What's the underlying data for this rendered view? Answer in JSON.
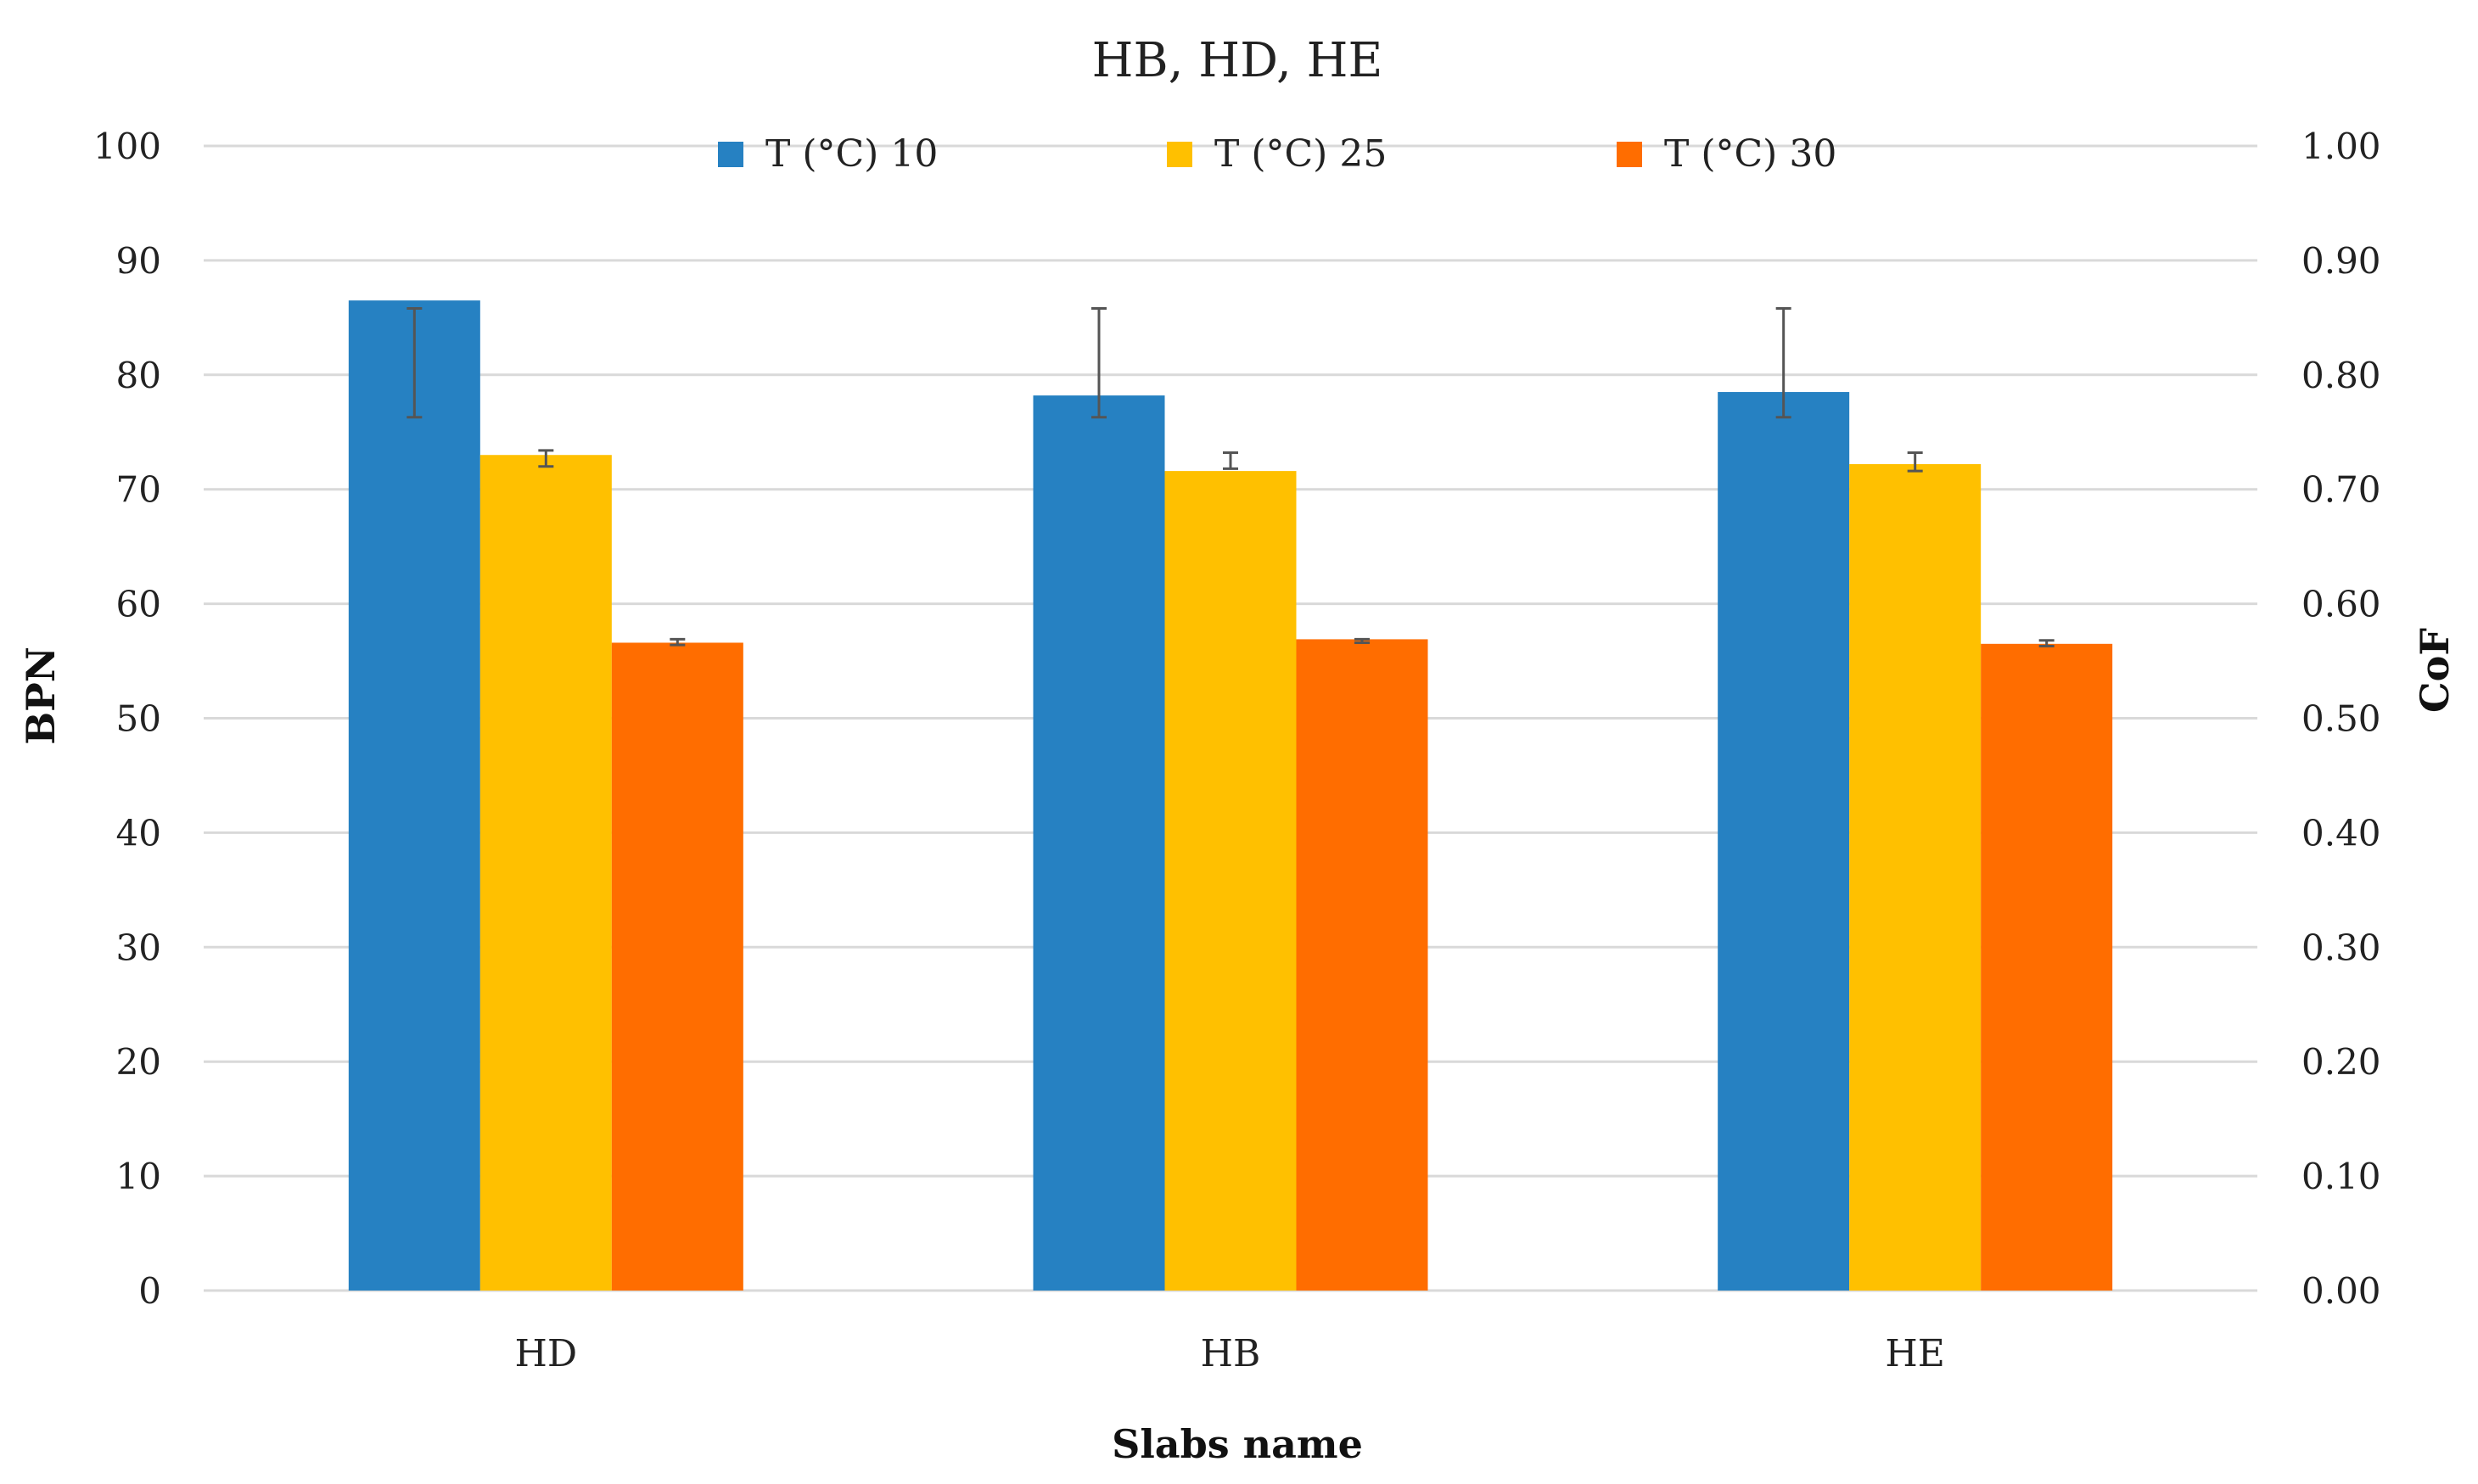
{
  "chart_data": {
    "type": "bar",
    "title": "HB, HD, HE",
    "xlabel": "Slabs name",
    "ylabel": "BPN",
    "y2label": "CoF",
    "categories": [
      "HD",
      "HB",
      "HE"
    ],
    "ylim": [
      0,
      100
    ],
    "y2lim": [
      0,
      1
    ],
    "yticks": [
      "0",
      "10",
      "20",
      "30",
      "40",
      "50",
      "60",
      "70",
      "80",
      "90",
      "100"
    ],
    "y2ticks": [
      "0.00",
      "0.10",
      "0.20",
      "0.30",
      "0.40",
      "0.50",
      "0.60",
      "0.70",
      "0.80",
      "0.90",
      "1.00"
    ],
    "grid": true,
    "legend_position": "top",
    "series": [
      {
        "name": "T (°C) 10",
        "color": "#2681C2",
        "values": [
          86.5,
          78.2,
          78.5
        ],
        "errors": [
          [
            76.3,
            85.8
          ],
          [
            76.3,
            85.8
          ],
          [
            76.3,
            85.8
          ]
        ]
      },
      {
        "name": "T (°C) 25",
        "color": "#FFC000",
        "values": [
          73.0,
          71.6,
          72.2
        ],
        "errors": [
          [
            72.0,
            73.4
          ],
          [
            71.8,
            73.2
          ],
          [
            71.6,
            73.2
          ]
        ]
      },
      {
        "name": "T (°C) 30",
        "color": "#FF6D00",
        "values": [
          56.6,
          56.9,
          56.5
        ],
        "errors": [
          [
            56.4,
            56.9
          ],
          [
            56.6,
            56.9
          ],
          [
            56.3,
            56.8
          ]
        ]
      }
    ]
  }
}
